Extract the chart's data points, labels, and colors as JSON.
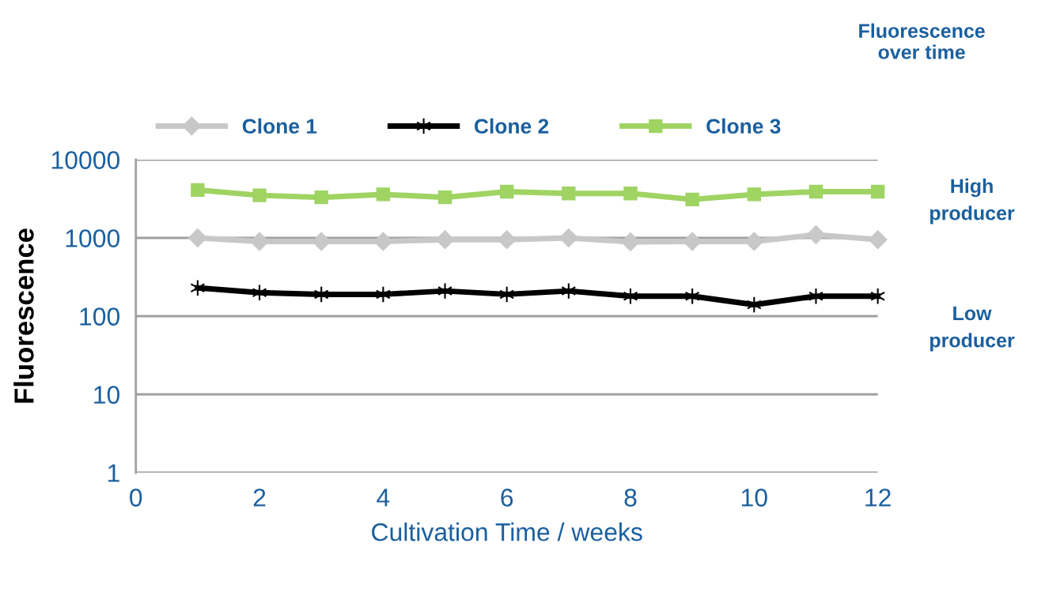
{
  "chart_data": {
    "type": "line",
    "title": "Fluorescence over time",
    "xlabel": "Cultivation Time / weeks",
    "ylabel": "Fluorescence",
    "x": [
      1,
      2,
      3,
      4,
      5,
      6,
      7,
      8,
      9,
      10,
      11,
      12
    ],
    "series": [
      {
        "name": "Clone 1",
        "color": "#c8c8c8",
        "marker": "diamond",
        "values": [
          1000,
          900,
          900,
          900,
          950,
          950,
          1000,
          890,
          900,
          900,
          1100,
          950
        ]
      },
      {
        "name": "Clone 2",
        "color": "#000000",
        "marker": "cross",
        "values": [
          230,
          200,
          190,
          190,
          210,
          190,
          210,
          180,
          180,
          140,
          180,
          180
        ]
      },
      {
        "name": "Clone 3",
        "color": "#9fd463",
        "marker": "square",
        "values": [
          4100,
          3500,
          3300,
          3600,
          3300,
          3900,
          3700,
          3700,
          3100,
          3600,
          3900,
          3900
        ]
      }
    ],
    "log": "y",
    "xlim": [
      0,
      12
    ],
    "xticks": [
      0,
      2,
      4,
      6,
      8,
      10,
      12
    ],
    "ylim": [
      1,
      10000
    ],
    "yticks": [
      1,
      10,
      100,
      1000,
      10000
    ],
    "grid": "y",
    "legend": "top",
    "line_style": "solid",
    "annotations": [
      "High producer",
      "Low producer"
    ]
  }
}
